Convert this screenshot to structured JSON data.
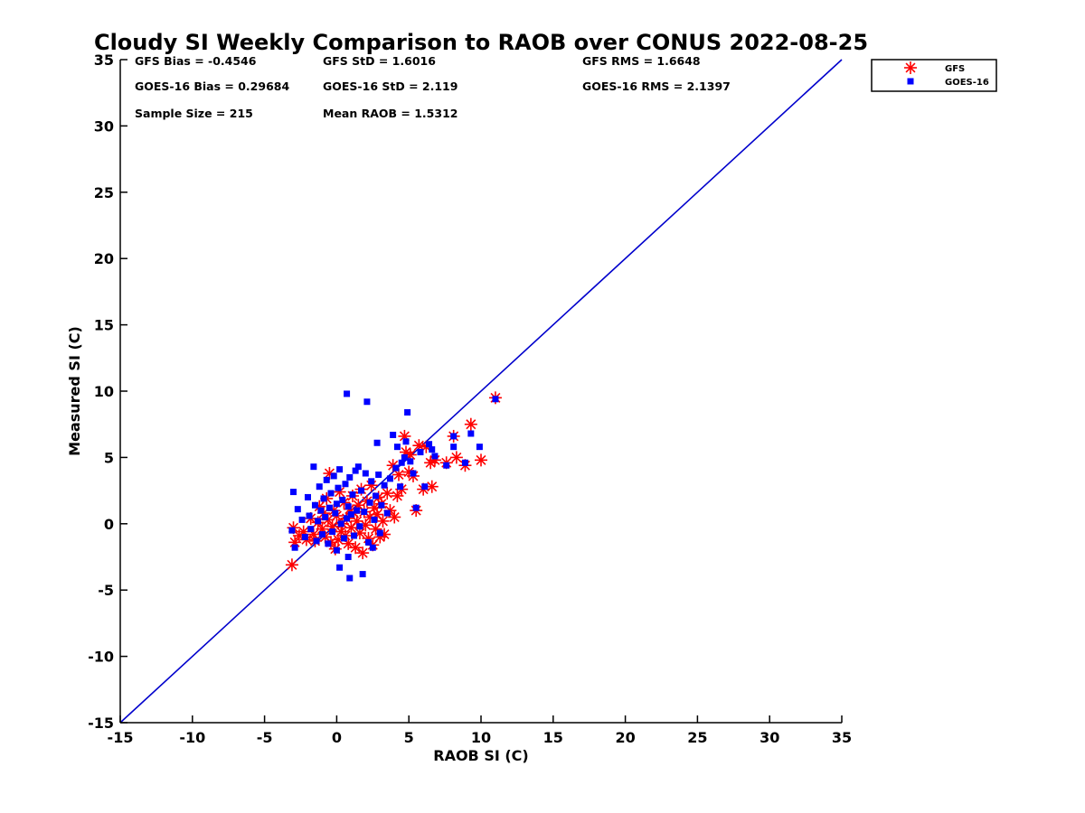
{
  "chart_data": {
    "type": "scatter",
    "title": "Cloudy SI Weekly Comparison to RAOB over CONUS 2022-08-25",
    "xlabel": "RAOB SI (C)",
    "ylabel": "Measured SI (C)",
    "xlim": [
      -15,
      35
    ],
    "ylim": [
      -15,
      35
    ],
    "x_ticks": [
      -15,
      -10,
      -5,
      0,
      5,
      10,
      15,
      20,
      25,
      30,
      35
    ],
    "y_ticks": [
      -15,
      -10,
      -5,
      0,
      5,
      10,
      15,
      20,
      25,
      30,
      35
    ],
    "x_tick_labels": [
      "-15",
      "-10",
      "-5",
      "0",
      "5",
      "10",
      "15",
      "20",
      "25",
      "30",
      "35"
    ],
    "y_tick_labels": [
      "-15",
      "-10",
      "-5",
      "0",
      "5",
      "10",
      "15",
      "20",
      "25",
      "30",
      "35"
    ],
    "grid": false,
    "legend_position": "top-right (outside)",
    "stats": [
      "GFS Bias = -0.4546",
      "GFS StD = 1.6016",
      "GFS RMS = 1.6648",
      "GOES-16 Bias = 0.29684",
      "GOES-16 StD = 2.119",
      "GOES-16 RMS = 2.1397",
      "Sample Size = 215",
      "Mean RAOB = 1.5312"
    ],
    "reference_line": {
      "type": "one-to-one",
      "from": [
        -15,
        -15
      ],
      "to": [
        35,
        35
      ],
      "color": "#0000cc"
    },
    "series": [
      {
        "name": "GFS",
        "marker": "asterisk",
        "color": "#ff0000",
        "points": [
          [
            -3.1,
            -3.1
          ],
          [
            -3.0,
            -0.3
          ],
          [
            -2.9,
            -1.4
          ],
          [
            -2.6,
            -0.9
          ],
          [
            -2.3,
            -0.6
          ],
          [
            -2.1,
            -1.2
          ],
          [
            -1.8,
            0.4
          ],
          [
            -1.6,
            -0.8
          ],
          [
            -1.5,
            -1.3
          ],
          [
            -1.3,
            0.1
          ],
          [
            -1.2,
            1.3
          ],
          [
            -1.0,
            -0.4
          ],
          [
            -0.9,
            0.8
          ],
          [
            -0.8,
            -1.0
          ],
          [
            -0.7,
            1.9
          ],
          [
            -0.6,
            0.3
          ],
          [
            -0.5,
            3.8
          ],
          [
            -0.4,
            -1.4
          ],
          [
            -0.3,
            -0.2
          ],
          [
            -0.2,
            1.0
          ],
          [
            -0.1,
            -1.9
          ],
          [
            0.0,
            0.6
          ],
          [
            0.1,
            -1.2
          ],
          [
            0.2,
            2.4
          ],
          [
            0.3,
            -0.6
          ],
          [
            0.4,
            0.0
          ],
          [
            0.5,
            1.6
          ],
          [
            0.6,
            -0.9
          ],
          [
            0.7,
            0.4
          ],
          [
            0.8,
            -1.5
          ],
          [
            0.9,
            1.1
          ],
          [
            1.0,
            -0.3
          ],
          [
            1.1,
            2.1
          ],
          [
            1.2,
            0.8
          ],
          [
            1.3,
            -1.8
          ],
          [
            1.4,
            0.2
          ],
          [
            1.5,
            1.4
          ],
          [
            1.6,
            -0.7
          ],
          [
            1.7,
            2.6
          ],
          [
            1.8,
            -2.2
          ],
          [
            1.9,
            0.9
          ],
          [
            2.0,
            -0.1
          ],
          [
            2.1,
            1.7
          ],
          [
            2.2,
            -1.1
          ],
          [
            2.3,
            0.5
          ],
          [
            2.4,
            2.9
          ],
          [
            2.5,
            -1.6
          ],
          [
            2.6,
            1.2
          ],
          [
            2.7,
            -0.4
          ],
          [
            2.8,
            0.7
          ],
          [
            2.9,
            2.0
          ],
          [
            3.0,
            -1.0
          ],
          [
            3.1,
            1.5
          ],
          [
            3.2,
            0.2
          ],
          [
            3.3,
            -0.8
          ],
          [
            3.5,
            2.3
          ],
          [
            3.7,
            1.0
          ],
          [
            3.9,
            4.4
          ],
          [
            4.0,
            0.5
          ],
          [
            4.2,
            2.1
          ],
          [
            4.3,
            3.7
          ],
          [
            4.5,
            2.6
          ],
          [
            4.7,
            6.6
          ],
          [
            4.8,
            5.4
          ],
          [
            5.0,
            3.9
          ],
          [
            5.1,
            5.2
          ],
          [
            5.3,
            3.6
          ],
          [
            5.5,
            1.0
          ],
          [
            5.7,
            5.9
          ],
          [
            6.0,
            2.6
          ],
          [
            6.2,
            5.8
          ],
          [
            6.5,
            4.6
          ],
          [
            6.6,
            2.8
          ],
          [
            6.8,
            4.8
          ],
          [
            7.6,
            4.6
          ],
          [
            8.1,
            6.6
          ],
          [
            8.3,
            5.0
          ],
          [
            8.9,
            4.4
          ],
          [
            9.3,
            7.5
          ],
          [
            10.0,
            4.8
          ],
          [
            11.0,
            9.5
          ]
        ]
      },
      {
        "name": "GOES-16",
        "marker": "square",
        "color": "#0000ff",
        "points": [
          [
            -3.1,
            -0.5
          ],
          [
            -3.0,
            2.4
          ],
          [
            -2.9,
            -1.8
          ],
          [
            -2.7,
            1.1
          ],
          [
            -2.4,
            0.3
          ],
          [
            -2.2,
            -1.0
          ],
          [
            -2.0,
            2.0
          ],
          [
            -1.9,
            0.6
          ],
          [
            -1.8,
            -0.4
          ],
          [
            -1.6,
            4.3
          ],
          [
            -1.5,
            1.4
          ],
          [
            -1.4,
            -1.3
          ],
          [
            -1.3,
            0.2
          ],
          [
            -1.2,
            2.8
          ],
          [
            -1.1,
            1.0
          ],
          [
            -1.0,
            -0.8
          ],
          [
            -0.9,
            1.9
          ],
          [
            -0.8,
            0.5
          ],
          [
            -0.7,
            3.3
          ],
          [
            -0.6,
            -1.5
          ],
          [
            -0.5,
            1.2
          ],
          [
            -0.4,
            2.3
          ],
          [
            -0.3,
            -0.6
          ],
          [
            -0.2,
            3.6
          ],
          [
            -0.1,
            0.8
          ],
          [
            0.0,
            -2.0
          ],
          [
            0.0,
            1.5
          ],
          [
            0.1,
            2.7
          ],
          [
            0.2,
            -3.3
          ],
          [
            0.2,
            4.1
          ],
          [
            0.3,
            0.0
          ],
          [
            0.4,
            1.8
          ],
          [
            0.5,
            -1.1
          ],
          [
            0.6,
            3.0
          ],
          [
            0.7,
            0.4
          ],
          [
            0.7,
            9.8
          ],
          [
            0.8,
            -2.5
          ],
          [
            0.8,
            1.3
          ],
          [
            0.9,
            3.5
          ],
          [
            0.9,
            -4.1
          ],
          [
            1.0,
            0.7
          ],
          [
            1.1,
            2.2
          ],
          [
            1.2,
            -0.9
          ],
          [
            1.3,
            4.0
          ],
          [
            1.4,
            1.0
          ],
          [
            1.5,
            4.3
          ],
          [
            1.6,
            -0.2
          ],
          [
            1.7,
            2.5
          ],
          [
            1.8,
            -3.8
          ],
          [
            1.9,
            0.9
          ],
          [
            2.0,
            3.8
          ],
          [
            2.1,
            9.2
          ],
          [
            2.2,
            -1.4
          ],
          [
            2.3,
            1.6
          ],
          [
            2.4,
            3.2
          ],
          [
            2.5,
            -1.8
          ],
          [
            2.6,
            0.3
          ],
          [
            2.7,
            2.1
          ],
          [
            2.8,
            6.1
          ],
          [
            2.9,
            3.7
          ],
          [
            3.0,
            -0.7
          ],
          [
            3.1,
            1.4
          ],
          [
            3.3,
            2.9
          ],
          [
            3.5,
            0.8
          ],
          [
            3.7,
            3.4
          ],
          [
            3.9,
            6.7
          ],
          [
            4.1,
            4.2
          ],
          [
            4.2,
            5.8
          ],
          [
            4.4,
            2.8
          ],
          [
            4.5,
            4.6
          ],
          [
            4.7,
            5.0
          ],
          [
            4.8,
            6.2
          ],
          [
            4.9,
            8.4
          ],
          [
            5.1,
            4.7
          ],
          [
            5.3,
            3.8
          ],
          [
            5.5,
            1.2
          ],
          [
            5.8,
            5.4
          ],
          [
            6.1,
            2.8
          ],
          [
            6.4,
            6.0
          ],
          [
            6.6,
            5.6
          ],
          [
            6.8,
            5.1
          ],
          [
            7.6,
            4.4
          ],
          [
            8.1,
            5.8
          ],
          [
            8.1,
            6.6
          ],
          [
            8.9,
            4.6
          ],
          [
            9.3,
            6.8
          ],
          [
            9.9,
            5.8
          ],
          [
            11.0,
            9.4
          ]
        ]
      }
    ]
  }
}
